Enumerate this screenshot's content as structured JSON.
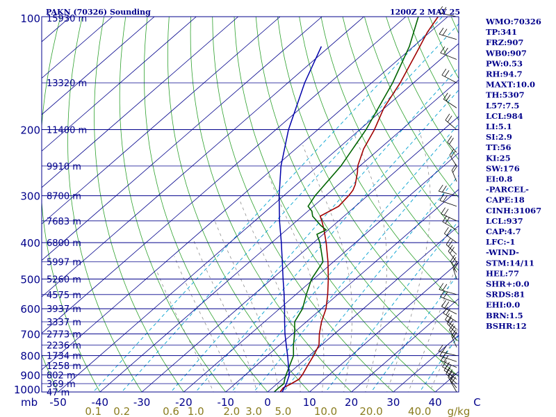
{
  "header": {
    "title": "PAKN (70326) Sounding",
    "datetime": "1200Z  2 MAY 25"
  },
  "colors": {
    "isobar": "#00008b",
    "isotherm": "#00008b",
    "dry_adiabat": "#2ca02c",
    "moist_adiabat": "#8c8c8c",
    "mixing_ratio": "#00a0d0",
    "temperature": "#a00000",
    "dewpoint": "#006400",
    "parcel": "#0000aa",
    "wind_barb": "#000000",
    "mixing_label": "#8b7d20"
  },
  "axes": {
    "pressure_levels": [
      100,
      200,
      300,
      400,
      500,
      600,
      700,
      800,
      900,
      1000
    ],
    "pressure_labels": [
      "100",
      "200",
      "300",
      "400",
      "500",
      "600",
      "700",
      "800",
      "900",
      "1000"
    ],
    "mb_label": "mb",
    "temperature_ticks": [
      "-50",
      "-40",
      "-30",
      "-20",
      "-10",
      "0",
      "10",
      "20",
      "30",
      "40",
      "C"
    ],
    "mixing_ratio_ticks": [
      "0.1",
      "0.2",
      "0.6",
      "1.0",
      "2.0",
      "3.0",
      "5.0",
      "10.0",
      "20.0",
      "40.0",
      "g/kg"
    ]
  },
  "heights": [
    "15930 m",
    "13320 m",
    "11400 m",
    "9910 m",
    "8700 m",
    "7683 m",
    "6800 m",
    "5997 m",
    "5260 m",
    "4575 m",
    "3937 m",
    "3337 m",
    "2773 m",
    "2236 m",
    "1734 m",
    "1258 m",
    "802 m",
    "369 m",
    "47 m"
  ],
  "chart_data": {
    "type": "line",
    "title": "PAKN (70326) Sounding",
    "xlabel": "",
    "ylabel": "",
    "ylim": [
      1000,
      100
    ],
    "series": [
      {
        "name": "",
        "role": "temperature",
        "points": [
          [
            1000,
            3.0
          ],
          [
            975,
            2.6
          ],
          [
            950,
            3.4
          ],
          [
            925,
            4.0
          ],
          [
            900,
            3.6
          ],
          [
            850,
            2.3
          ],
          [
            800,
            1.0
          ],
          [
            750,
            -0.6
          ],
          [
            700,
            -3.6
          ],
          [
            650,
            -6.4
          ],
          [
            600,
            -8.9
          ],
          [
            550,
            -12.4
          ],
          [
            500,
            -16.5
          ],
          [
            450,
            -21.3
          ],
          [
            400,
            -27.0
          ],
          [
            370,
            -31.0
          ],
          [
            350,
            -34.0
          ],
          [
            340,
            -35.7
          ],
          [
            320,
            -34.0
          ],
          [
            300,
            -34.5
          ],
          [
            290,
            -35.0
          ],
          [
            280,
            -36.0
          ],
          [
            260,
            -38.8
          ],
          [
            250,
            -40.5
          ],
          [
            225,
            -43.8
          ],
          [
            200,
            -46.5
          ],
          [
            175,
            -50.2
          ],
          [
            150,
            -53.2
          ],
          [
            125,
            -57.5
          ],
          [
            110,
            -60.6
          ],
          [
            100,
            -62.3
          ]
        ]
      },
      {
        "name": "",
        "role": "dewpoint",
        "points": [
          [
            1000,
            1.6
          ],
          [
            975,
            1.5
          ],
          [
            950,
            1.6
          ],
          [
            925,
            0.6
          ],
          [
            900,
            -0.3
          ],
          [
            850,
            -2.0
          ],
          [
            800,
            -3.8
          ],
          [
            750,
            -6.7
          ],
          [
            700,
            -9.5
          ],
          [
            650,
            -12.8
          ],
          [
            600,
            -14.5
          ],
          [
            550,
            -17.5
          ],
          [
            500,
            -20.5
          ],
          [
            450,
            -22.5
          ],
          [
            400,
            -28.5
          ],
          [
            380,
            -31.5
          ],
          [
            370,
            -30.5
          ],
          [
            360,
            -33.0
          ],
          [
            340,
            -37.5
          ],
          [
            330,
            -39.0
          ],
          [
            320,
            -41.3
          ],
          [
            300,
            -42.5
          ],
          [
            250,
            -44.5
          ],
          [
            200,
            -48.5
          ],
          [
            150,
            -55.0
          ],
          [
            120,
            -61.0
          ],
          [
            100,
            -67.0
          ]
        ]
      },
      {
        "name": "",
        "role": "parcel",
        "points": [
          [
            1000,
            3.5
          ],
          [
            950,
            2.2
          ],
          [
            900,
            0.5
          ],
          [
            850,
            -2.3
          ],
          [
            800,
            -5.2
          ],
          [
            750,
            -8.4
          ],
          [
            700,
            -11.8
          ],
          [
            650,
            -15.2
          ],
          [
            600,
            -18.8
          ],
          [
            550,
            -22.8
          ],
          [
            500,
            -27.3
          ],
          [
            450,
            -32.2
          ],
          [
            400,
            -37.7
          ],
          [
            350,
            -44.1
          ],
          [
            300,
            -51.1
          ],
          [
            250,
            -58.8
          ],
          [
            200,
            -67.0
          ],
          [
            150,
            -76.0
          ],
          [
            120,
            -82.0
          ]
        ]
      }
    ]
  },
  "indices": [
    "WMO:70326",
    "TP:341",
    "FRZ:907",
    "WB0:907",
    "PW:0.53",
    "RH:94.7",
    "MAXT:10.0",
    "TH:5307",
    "L57:7.5",
    "LCL:984",
    "LI:5.1",
    "SI:2.9",
    "TT:56",
    "KI:25",
    "SW:176",
    "EI:0.8",
    "-PARCEL-",
    "CAPE:18",
    "CINH:31067",
    "LCL:937",
    "CAP:4.7",
    "LFC:-1",
    "-WIND-",
    "STM:14/11",
    "HEL:77",
    "SHR+:0.0",
    "SRDS:81",
    "EHI:0.0",
    "BRN:1.5",
    "BSHR:12"
  ]
}
